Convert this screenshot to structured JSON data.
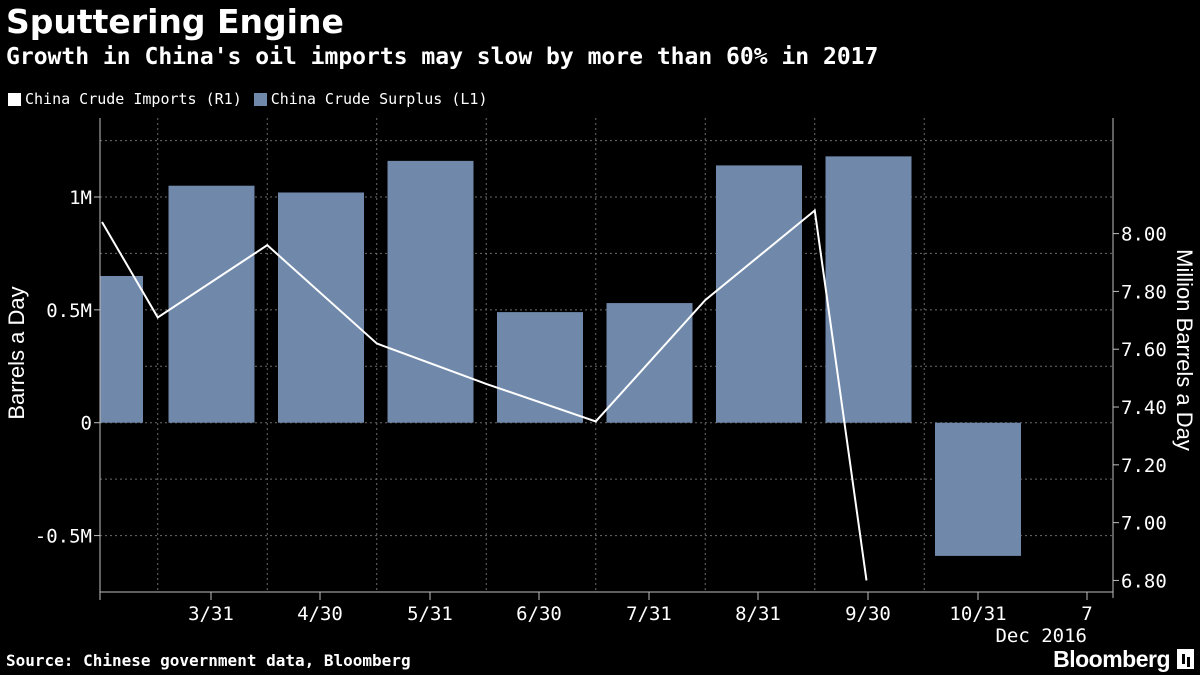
{
  "header": {
    "title": "Sputtering Engine",
    "subtitle": "Growth in China's oil imports may slow by more than 60% in 2017"
  },
  "legend": {
    "items": [
      {
        "label": "China Crude Imports (R1)",
        "color": "#ffffff"
      },
      {
        "label": "China Crude Surplus (L1)",
        "color": "#7089ab"
      }
    ]
  },
  "footer": {
    "source": "Source: Chinese government data, Bloomberg",
    "brand": "Bloomberg"
  },
  "chart_data": {
    "type": "bar",
    "x_tick_labels": [
      "3/31",
      "4/30",
      "5/31",
      "6/30",
      "7/31",
      "8/31",
      "9/30",
      "10/31",
      "7"
    ],
    "x_axis_caption": "Dec 2016",
    "left_axis": {
      "label": "Barrels a Day",
      "range": [
        -0.75,
        1.35
      ],
      "ticks": [
        {
          "value": 1.0,
          "label": "1M"
        },
        {
          "value": 0.5,
          "label": "0.5M"
        },
        {
          "value": 0,
          "label": "0"
        },
        {
          "value": -0.5,
          "label": "-0.5M"
        }
      ]
    },
    "right_axis": {
      "label": "Million Barrels a Day",
      "range": [
        6.76,
        8.4
      ],
      "ticks": [
        "8.00",
        "7.80",
        "7.60",
        "7.40",
        "7.20",
        "7.00",
        "6.80"
      ]
    },
    "series": [
      {
        "name": "China Crude Surplus (L1)",
        "type": "bar",
        "axis": "left",
        "color": "#7089ab",
        "values": [
          0.65,
          1.05,
          1.02,
          1.16,
          0.49,
          0.53,
          1.14,
          1.18,
          -0.59
        ]
      },
      {
        "name": "China Crude Imports (R1)",
        "type": "line",
        "axis": "right",
        "color": "#ffffff",
        "values": [
          8.04,
          7.71,
          7.96,
          7.62,
          7.48,
          7.35,
          7.77,
          8.08,
          6.8
        ]
      }
    ],
    "grid": true
  }
}
